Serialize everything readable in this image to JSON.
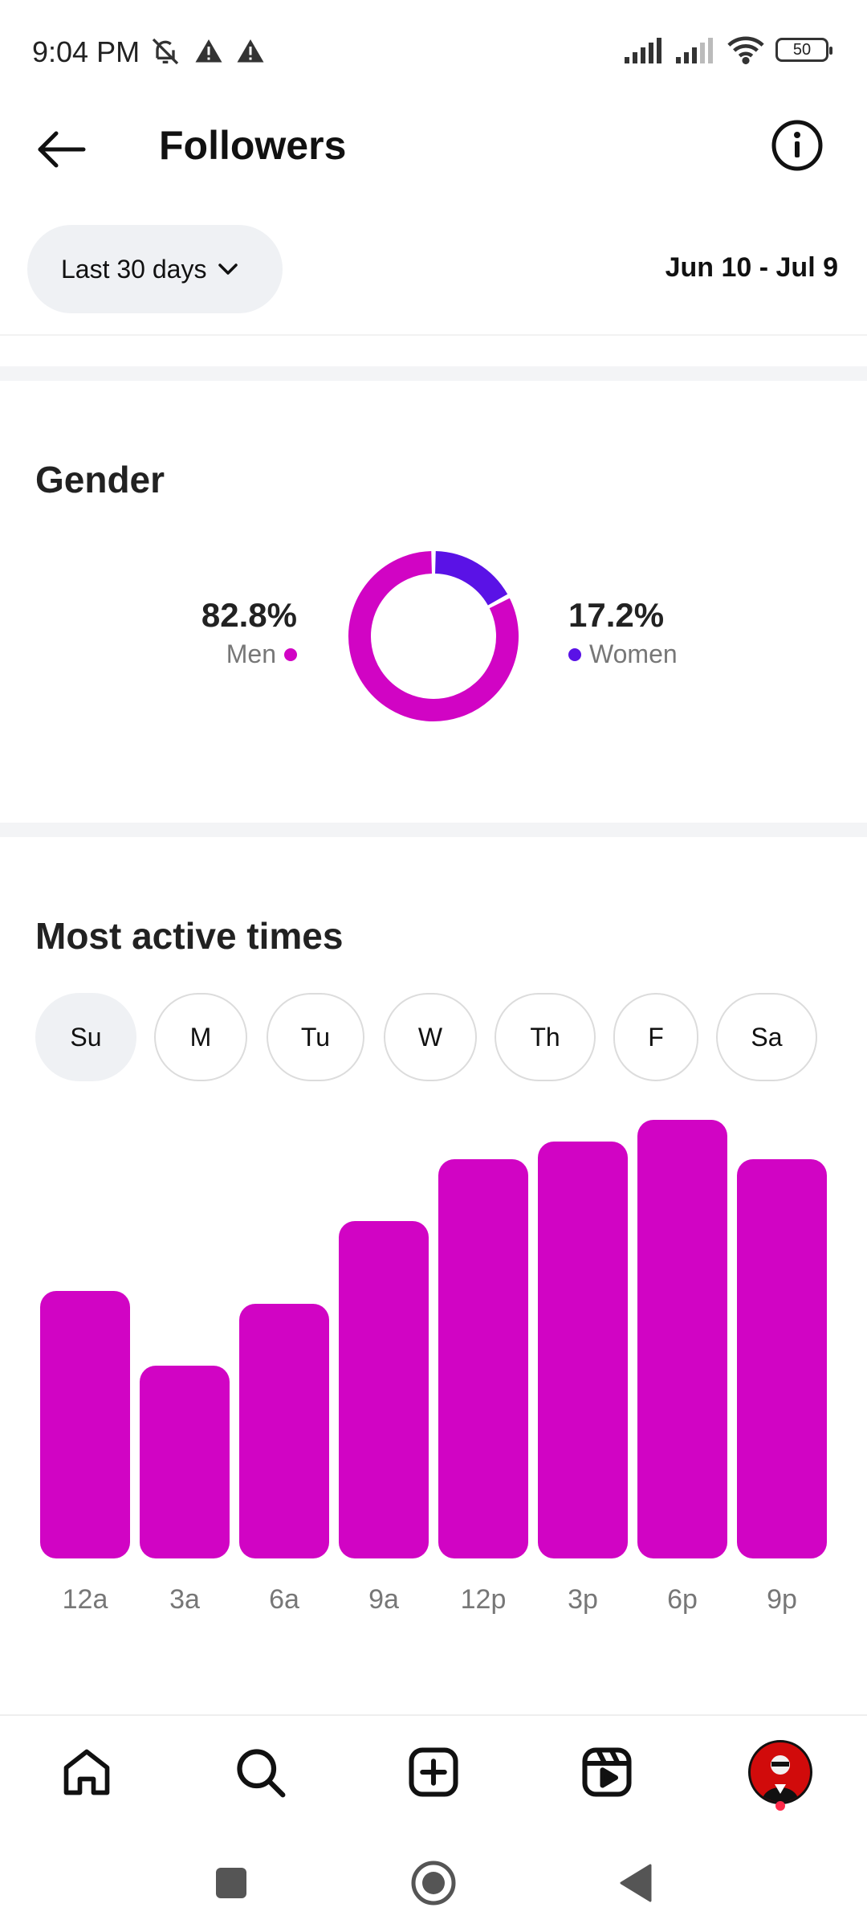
{
  "status_bar": {
    "time": "9:04 PM",
    "battery": "50"
  },
  "header": {
    "title": "Followers"
  },
  "filter": {
    "period_label": "Last 30 days",
    "date_range": "Jun 10 - Jul 9"
  },
  "gender": {
    "title": "Gender",
    "men": {
      "percent": "82.8%",
      "label": "Men",
      "value": 82.8,
      "color": "#d104c4"
    },
    "women": {
      "percent": "17.2%",
      "label": "Women",
      "value": 17.2,
      "color": "#5a12e6"
    }
  },
  "active_times": {
    "title": "Most active times",
    "days": [
      "Su",
      "M",
      "Tu",
      "W",
      "Th",
      "F",
      "Sa"
    ],
    "selected_day": "Su"
  },
  "chart_data": {
    "type": "bar",
    "categories": [
      "12a",
      "3a",
      "6a",
      "9a",
      "12p",
      "3p",
      "6p",
      "9p"
    ],
    "values": [
      61,
      44,
      58,
      77,
      91,
      95,
      100,
      91
    ],
    "ylim": [
      0,
      100
    ],
    "grid": false,
    "color": "#d104c4"
  },
  "colors": {
    "accent": "#d104c4",
    "secondary": "#5a12e6",
    "pill_bg": "#eff1f4"
  },
  "bottom_nav": [
    "home-icon",
    "search-icon",
    "create-icon",
    "reels-icon",
    "profile-avatar"
  ],
  "system_nav": [
    "recents-icon",
    "home-circle-icon",
    "back-triangle-icon"
  ]
}
